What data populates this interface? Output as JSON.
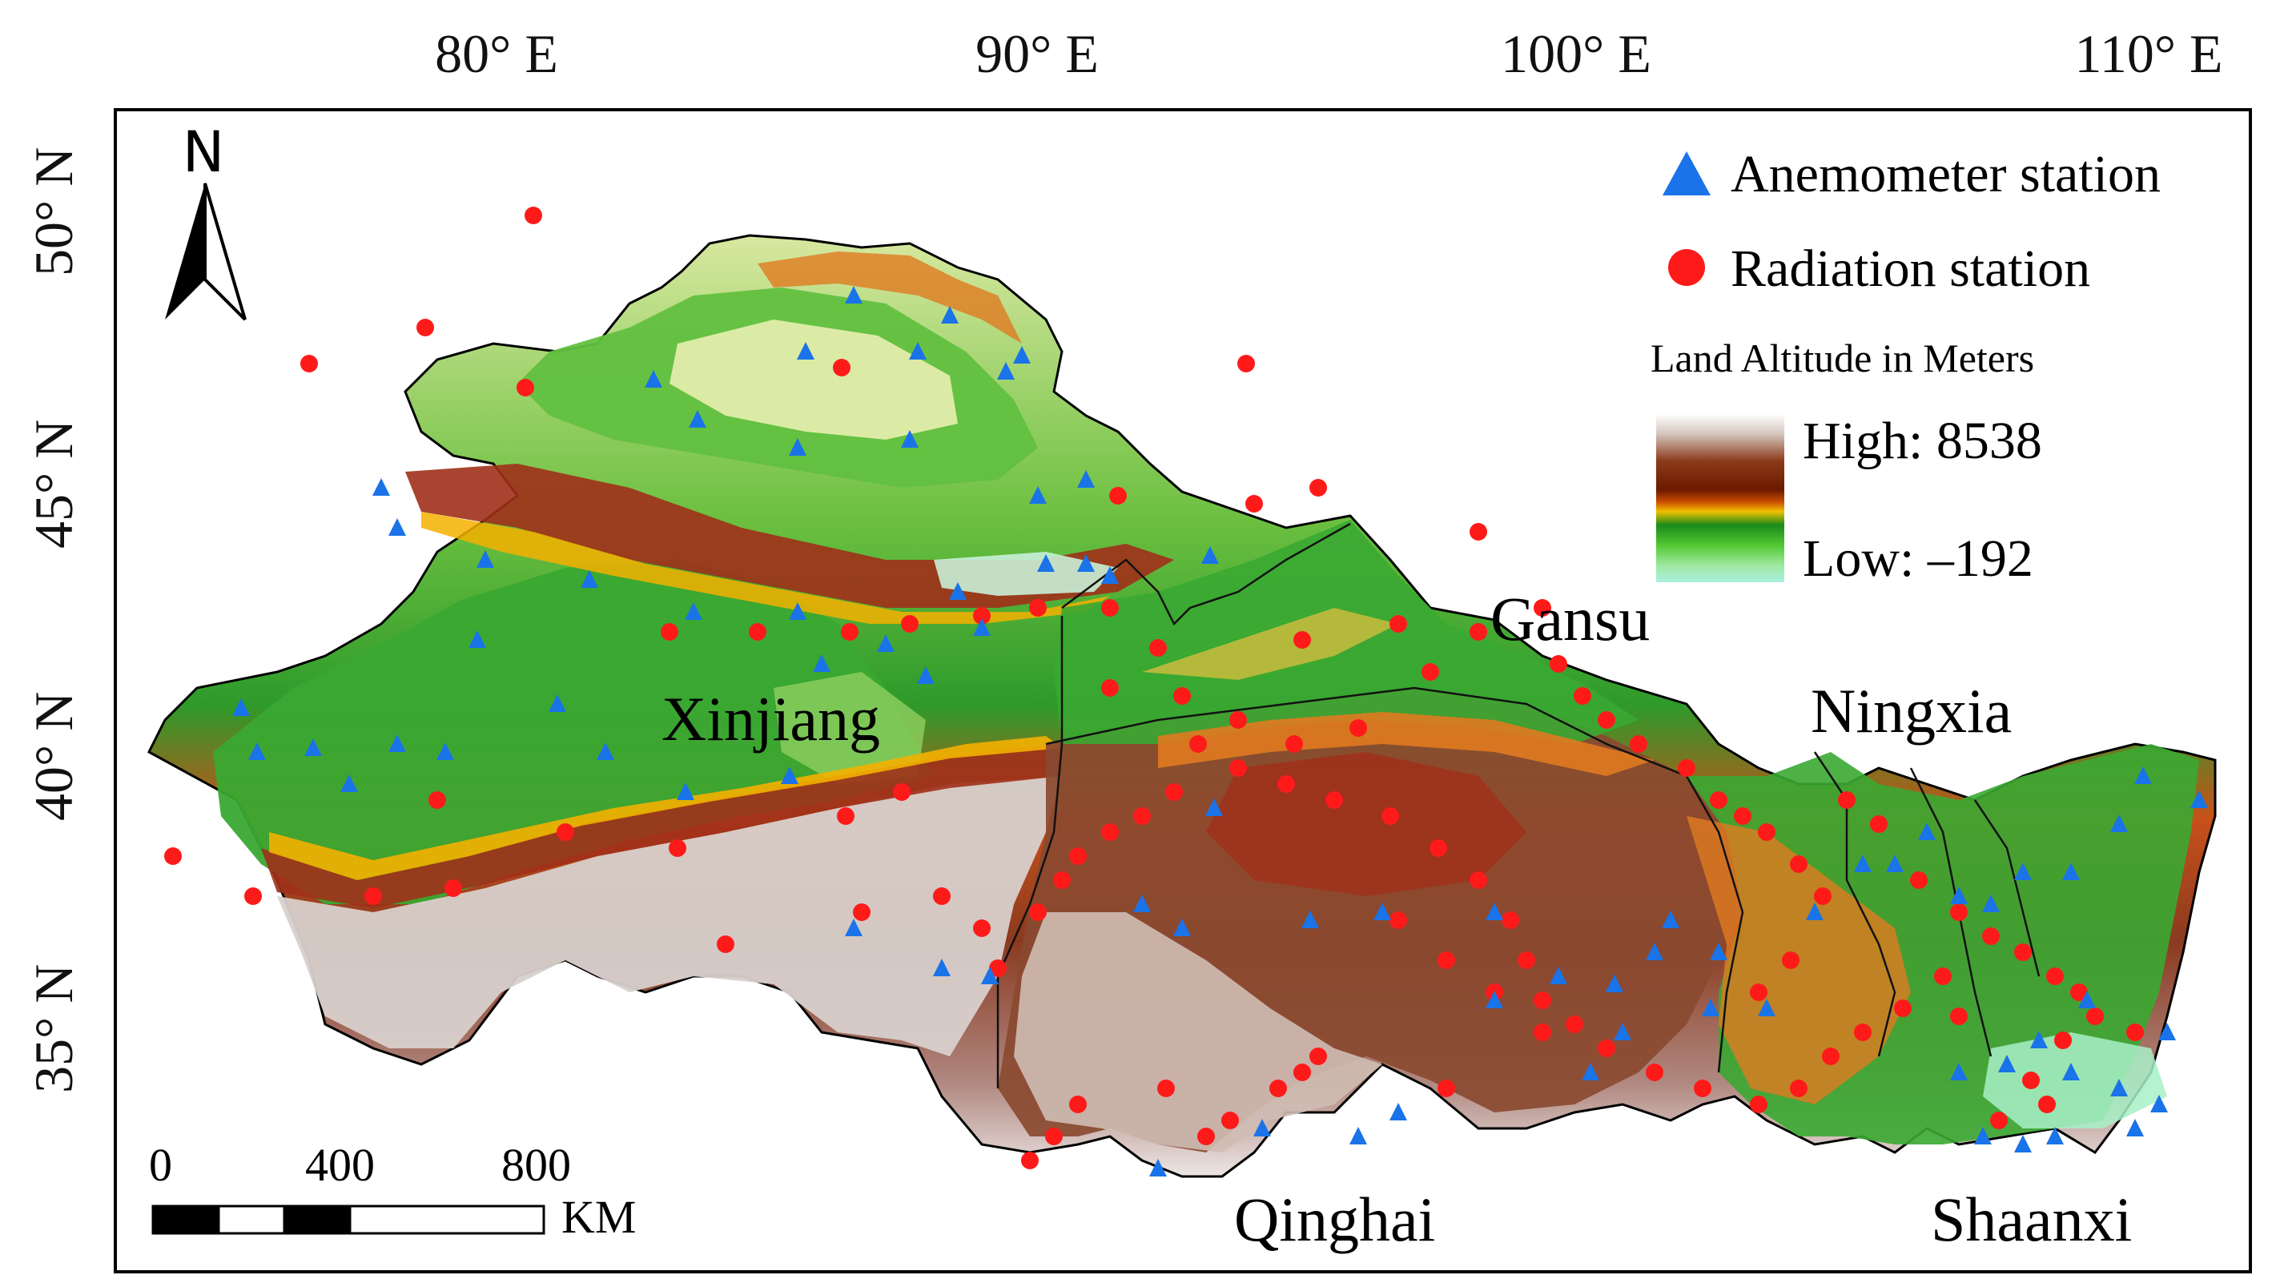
{
  "axes": {
    "lon_ticks": [
      "80° E",
      "90° E",
      "100° E",
      "110° E"
    ],
    "lat_ticks": [
      "50° N",
      "45° N",
      "40° N",
      "35° N"
    ]
  },
  "north_arrow": {
    "label": "N"
  },
  "legend": {
    "anemometer_label": "Anemometer station",
    "radiation_label": "Radiation station",
    "altitude_title": "Land Altitude in Meters",
    "high_label": "High: 8538",
    "low_label": "Low: –192",
    "anemometer_color": "#1a73e8",
    "radiation_color": "#ff1a1a",
    "ramp_colors": [
      "#ffffff",
      "#d4c4bc",
      "#8b3a1a",
      "#6b1a00",
      "#c84a00",
      "#f0c000",
      "#1a8a1a",
      "#52c832",
      "#a0e8a0",
      "#a8f0e0"
    ]
  },
  "provinces": {
    "xinjiang": "Xinjiang",
    "gansu": "Gansu",
    "ningxia": "Ningxia",
    "qinghai": "Qinghai",
    "shaanxi": "Shaanxi"
  },
  "scale_bar": {
    "labels": [
      "0",
      "400",
      "800"
    ],
    "unit": "KM"
  },
  "colors": {
    "desert_light": "#e8f0b0",
    "plain_green": "#3aa832",
    "mountain_red": "#a0301a",
    "plateau_brown": "#8a4a30",
    "highland_grey": "#d8d0cc",
    "yellow_band": "#f4b000"
  }
}
